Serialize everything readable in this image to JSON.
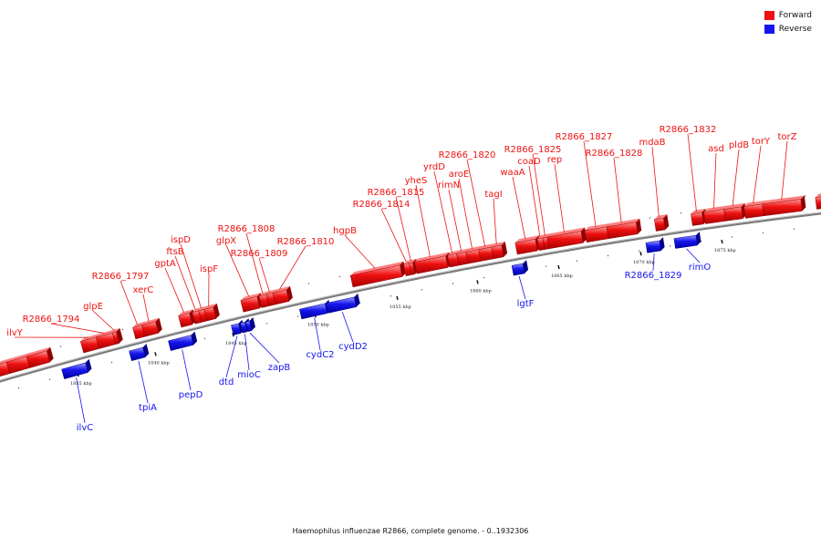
{
  "caption": "Haemophilus influenzae R2866, complete genome. - 0..1932306",
  "legend": [
    {
      "label": "Forward",
      "color": "#ee1111"
    },
    {
      "label": "Reverse",
      "color": "#1515ee"
    }
  ],
  "colors": {
    "forward": "#ee1111",
    "reverse": "#1515ee",
    "backbone": "#888888"
  },
  "ticks": [
    "1835 kbp",
    "1840 kbp",
    "1845 kbp",
    "1850 kbp",
    "1855 kbp",
    "1860 kbp",
    "1865 kbp",
    "1870 kbp",
    "1875 kbp"
  ],
  "genes_forward": [
    "ilvY",
    "R2866_1794",
    "glpE",
    "R2866_1797",
    "xerC",
    "gptA",
    "ftsB",
    "ispD",
    "ispF",
    "glpX",
    "R2866_1808",
    "R2866_1809",
    "R2866_1810",
    "hgpB",
    "R2866_1814",
    "R2866_1815",
    "yheS",
    "yrdD",
    "rimN",
    "aroE",
    "R2866_1820",
    "tagI",
    "waaA",
    "coaD",
    "R2866_1825",
    "rep",
    "R2866_1827",
    "R2866_1828",
    "mdaB",
    "R2866_1832",
    "asd",
    "pldB",
    "torY",
    "torZ"
  ],
  "genes_reverse": [
    "ilvC",
    "tpiA",
    "pepD",
    "dtd",
    "mioC",
    "zapB",
    "cydC2",
    "cydD2",
    "lgtF",
    "R2866_1829",
    "rimO"
  ]
}
